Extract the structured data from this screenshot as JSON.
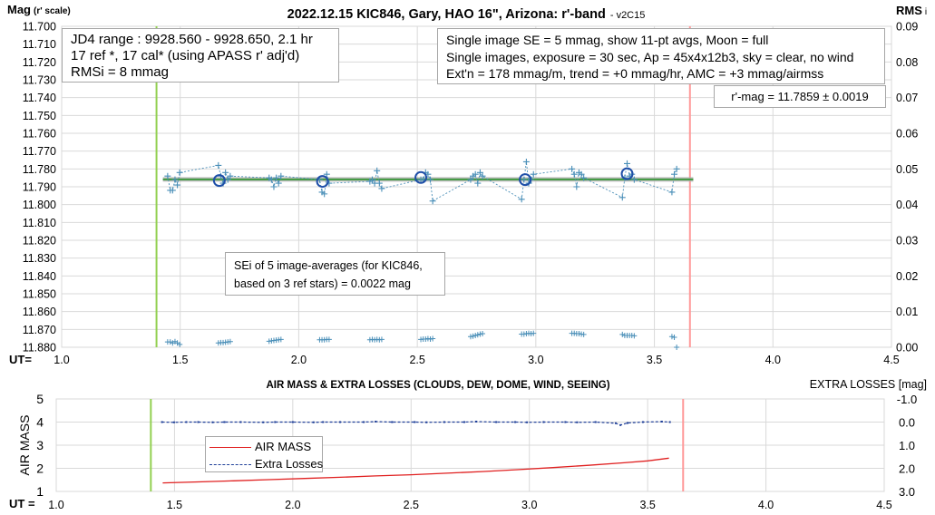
{
  "colors": {
    "series_line": "#4a8fb8",
    "series_marker": "#1f4e8c",
    "average_circle": "#1f4fa8",
    "start_line": "#92d050",
    "end_line": "#ff9999",
    "fit_band": "#b0b0b0",
    "fit_line": "#3f9a3f",
    "airmass": "#e02020",
    "extra_losses": "#1f3f99"
  },
  "chart_data": [
    {
      "type": "scatter",
      "title": "2022.12.15 KIC846, Gary, HAO 16\", Arizona: r'-band",
      "title_suffix": "- v2C15",
      "ylabel": "Mag",
      "ylabel_suffix": "(r' scale)",
      "y2label": "RMS",
      "y2label_suffix": "i",
      "xlabel": "UT=",
      "xlim": [
        1.0,
        4.5
      ],
      "ylim": [
        11.88,
        11.7
      ],
      "y2lim": [
        0.0,
        0.09
      ],
      "x_ticks": [
        "1.0",
        "1.5",
        "2.0",
        "2.5",
        "3.0",
        "3.5",
        "4.0",
        "4.5"
      ],
      "y_ticks": [
        "11.700",
        "11.710",
        "11.720",
        "11.730",
        "11.740",
        "11.750",
        "11.760",
        "11.770",
        "11.780",
        "11.790",
        "11.800",
        "11.810",
        "11.820",
        "11.830",
        "11.840",
        "11.850",
        "11.860",
        "11.870",
        "11.880"
      ],
      "y2_ticks": [
        "0.09",
        "0.08",
        "0.07",
        "0.06",
        "0.05",
        "0.04",
        "0.03",
        "0.02",
        "0.01",
        "0.00"
      ],
      "grid": true,
      "start_ut": 1.4,
      "end_ut": 3.65,
      "mean_mag": 11.7859,
      "series": [
        {
          "name": "single images",
          "x": [
            1.447,
            1.458,
            1.468,
            1.478,
            1.488,
            1.498,
            1.661,
            1.671,
            1.681,
            1.691,
            1.701,
            1.711,
            1.875,
            1.885,
            1.895,
            1.905,
            1.915,
            1.925,
            2.088,
            2.098,
            2.108,
            2.118,
            2.128,
            2.3,
            2.31,
            2.32,
            2.33,
            2.34,
            2.35,
            2.515,
            2.525,
            2.535,
            2.545,
            2.555,
            2.565,
            2.725,
            2.735,
            2.745,
            2.755,
            2.765,
            2.775,
            2.94,
            2.95,
            2.96,
            2.97,
            2.98,
            2.99,
            3.152,
            3.162,
            3.172,
            3.182,
            3.192,
            3.202,
            3.365,
            3.375,
            3.385,
            3.395,
            3.405,
            3.415,
            3.574,
            3.584,
            3.594
          ],
          "y": [
            11.784,
            11.792,
            11.792,
            11.786,
            11.789,
            11.782,
            11.778,
            11.784,
            11.788,
            11.782,
            11.786,
            11.784,
            11.785,
            11.786,
            11.79,
            11.785,
            11.788,
            11.784,
            11.786,
            11.793,
            11.794,
            11.783,
            11.788,
            11.787,
            11.786,
            11.788,
            11.781,
            11.788,
            11.791,
            11.786,
            11.786,
            11.782,
            11.783,
            11.786,
            11.798,
            11.786,
            11.784,
            11.783,
            11.788,
            11.782,
            11.784,
            11.797,
            11.786,
            11.776,
            11.788,
            11.786,
            11.783,
            11.78,
            11.783,
            11.79,
            11.782,
            11.783,
            11.785,
            11.796,
            11.785,
            11.777,
            11.784,
            11.783,
            11.786,
            11.793,
            11.783,
            11.78
          ]
        },
        {
          "name": "image averages",
          "x": [
            1.665,
            2.1,
            2.515,
            2.955,
            3.385
          ],
          "y": [
            11.7865,
            11.787,
            11.7848,
            11.786,
            11.7827
          ]
        },
        {
          "name": "RMSi",
          "axis": "y2",
          "x": [
            1.447,
            1.458,
            1.468,
            1.478,
            1.488,
            1.498,
            1.661,
            1.671,
            1.681,
            1.691,
            1.701,
            1.711,
            1.875,
            1.885,
            1.895,
            1.905,
            1.915,
            1.925,
            2.088,
            2.098,
            2.108,
            2.118,
            2.128,
            2.3,
            2.31,
            2.32,
            2.33,
            2.34,
            2.35,
            2.515,
            2.525,
            2.535,
            2.545,
            2.555,
            2.565,
            2.725,
            2.735,
            2.745,
            2.755,
            2.765,
            2.775,
            2.94,
            2.95,
            2.96,
            2.97,
            2.98,
            2.99,
            3.152,
            3.162,
            3.172,
            3.182,
            3.192,
            3.202,
            3.365,
            3.375,
            3.385,
            3.395,
            3.405,
            3.415,
            3.574,
            3.584,
            3.594
          ],
          "y": [
            0.0015,
            0.0015,
            0.0012,
            0.0016,
            0.0012,
            0.0008,
            0.0012,
            0.0013,
            0.0013,
            0.0014,
            0.0015,
            0.0016,
            0.0017,
            0.0018,
            0.0019,
            0.002,
            0.0021,
            0.0022,
            0.0021,
            0.0021,
            0.0021,
            0.0022,
            0.0022,
            0.0021,
            0.0022,
            0.0021,
            0.0022,
            0.0021,
            0.0022,
            0.0022,
            0.0023,
            0.0023,
            0.0024,
            0.0023,
            0.0024,
            0.003,
            0.0031,
            0.0033,
            0.0035,
            0.0037,
            0.0038,
            0.0037,
            0.0037,
            0.0038,
            0.0039,
            0.0038,
            0.0039,
            0.0039,
            0.0039,
            0.0038,
            0.0038,
            0.0037,
            0.0036,
            0.0036,
            0.0033,
            0.0033,
            0.0033,
            0.0033,
            0.0032,
            0.003,
            0.0028,
            0.0
          ]
        }
      ]
    },
    {
      "type": "line",
      "title": "AIR MASS & EXTRA LOSSES (CLOUDS, DEW, DOME, WIND, SEEING)",
      "ylabel": "AIR MASS",
      "y2label": "EXTRA LOSSES [mag]",
      "xlabel": "UT =",
      "xlim": [
        1.0,
        4.5
      ],
      "ylim": [
        1,
        5
      ],
      "y2lim": [
        3.0,
        -1.0
      ],
      "x_ticks": [
        "1.0",
        "1.5",
        "2.0",
        "2.5",
        "3.0",
        "3.5",
        "4.0",
        "4.5"
      ],
      "y_ticks": [
        "5",
        "4",
        "3",
        "2",
        "1"
      ],
      "y2_ticks": [
        "-1.0",
        "0.0",
        "1.0",
        "2.0",
        "3.0"
      ],
      "start_ut": 1.4,
      "end_ut": 3.65,
      "legend": "center-left",
      "series": [
        {
          "name": "AIR MASS",
          "x": [
            1.45,
            1.6,
            1.75,
            1.9,
            2.05,
            2.2,
            2.35,
            2.5,
            2.65,
            2.8,
            2.95,
            3.1,
            3.25,
            3.4,
            3.5,
            3.59
          ],
          "y": [
            1.37,
            1.41,
            1.46,
            1.51,
            1.56,
            1.61,
            1.67,
            1.72,
            1.79,
            1.86,
            1.94,
            2.03,
            2.13,
            2.24,
            2.32,
            2.44
          ]
        },
        {
          "name": "Extra Losses",
          "x": [
            1.447,
            1.498,
            1.55,
            1.6,
            1.661,
            1.711,
            1.78,
            1.875,
            1.925,
            2.0,
            2.088,
            2.128,
            2.2,
            2.3,
            2.35,
            2.42,
            2.515,
            2.565,
            2.64,
            2.725,
            2.775,
            2.86,
            2.94,
            2.99,
            3.06,
            3.152,
            3.202,
            3.28,
            3.365,
            3.385,
            3.415,
            3.48,
            3.56,
            3.594
          ],
          "y": [
            0.0,
            0.01,
            0.0,
            0.0,
            0.01,
            0.0,
            0.0,
            0.01,
            0.0,
            0.0,
            0.01,
            0.0,
            0.0,
            0.0,
            -0.02,
            0.0,
            0.0,
            0.01,
            0.0,
            0.0,
            -0.02,
            0.0,
            0.0,
            0.01,
            0.0,
            0.0,
            0.01,
            0.0,
            0.05,
            0.13,
            0.04,
            0.0,
            -0.02,
            0.0
          ]
        }
      ]
    }
  ],
  "annotations": {
    "jd_line1": "JD4 range : 9928.560 - 9928.650,  2.1  hr",
    "jd_line2": "17 ref *, 17 cal* (using APASS r' adj'd)",
    "jd_line3": "RMSi = 8 mmag",
    "info_line1": "Single image SE = 5 mmag, show  11-pt avgs, Moon = full",
    "info_line2": "Single images, exposure = 30 sec, Ap = 45x4x12b3, sky = clear, no wind",
    "info_line3": "Ext'n = 178 mmag/m, trend = +0  mmag/hr, AMC = +3 mmag/airmss",
    "rmag": "r'-mag = 11.7859 ± 0.0019",
    "sei_line1": "SEi of 5 image-averages (for KIC846,",
    "sei_line2": "based on 3 ref stars) = 0.0022 mag"
  }
}
